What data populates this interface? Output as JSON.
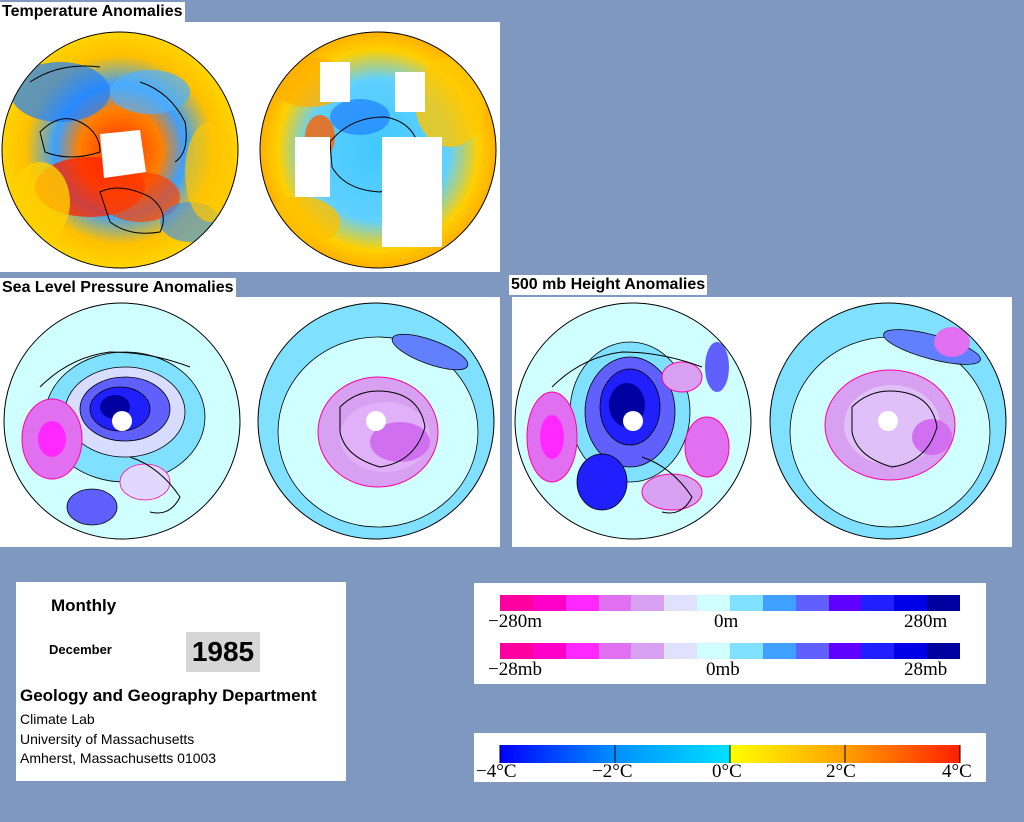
{
  "titles": {
    "temperature": "Temperature Anomalies",
    "slp": "Sea Level Pressure Anomalies",
    "height500": "500 mb Height Anomalies"
  },
  "info": {
    "period": "Monthly",
    "month": "December",
    "year": "1985",
    "department": "Geology and Geography Department",
    "lab": "Climate Lab",
    "university": "University of Massachusetts",
    "address": "Amherst, Massachusetts 01003"
  },
  "height_scale": {
    "left_label": "−280m",
    "center_label": "0m",
    "right_label": "280m",
    "colors": [
      "#ff00a0",
      "#ff00c8",
      "#ff28ff",
      "#e070f0",
      "#d8a0f0",
      "#e0e0ff",
      "#d0ffff",
      "#80e0ff",
      "#40a0ff",
      "#6060ff",
      "#6000ff",
      "#2020ff",
      "#0000e8",
      "#0000a0"
    ]
  },
  "pressure_scale": {
    "left_label": "−28mb",
    "center_label": "0mb",
    "right_label": "28mb",
    "colors": [
      "#ff00a0",
      "#ff00c8",
      "#ff28ff",
      "#e070f0",
      "#d8a0f0",
      "#e0e0ff",
      "#d0ffff",
      "#80e0ff",
      "#40a0ff",
      "#6060ff",
      "#6000ff",
      "#2020ff",
      "#0000e8",
      "#0000a0"
    ]
  },
  "temperature_scale": {
    "labels": [
      "−4°C",
      "−2°C",
      "0°C",
      "2°C",
      "4°C"
    ],
    "colors": {
      "cold_extreme": "#0000ff",
      "cold": "#0090ff",
      "cool": "#00e0ff",
      "warm": "#ffff00",
      "hot": "#ffa000",
      "hot_extreme": "#ff2000"
    }
  }
}
